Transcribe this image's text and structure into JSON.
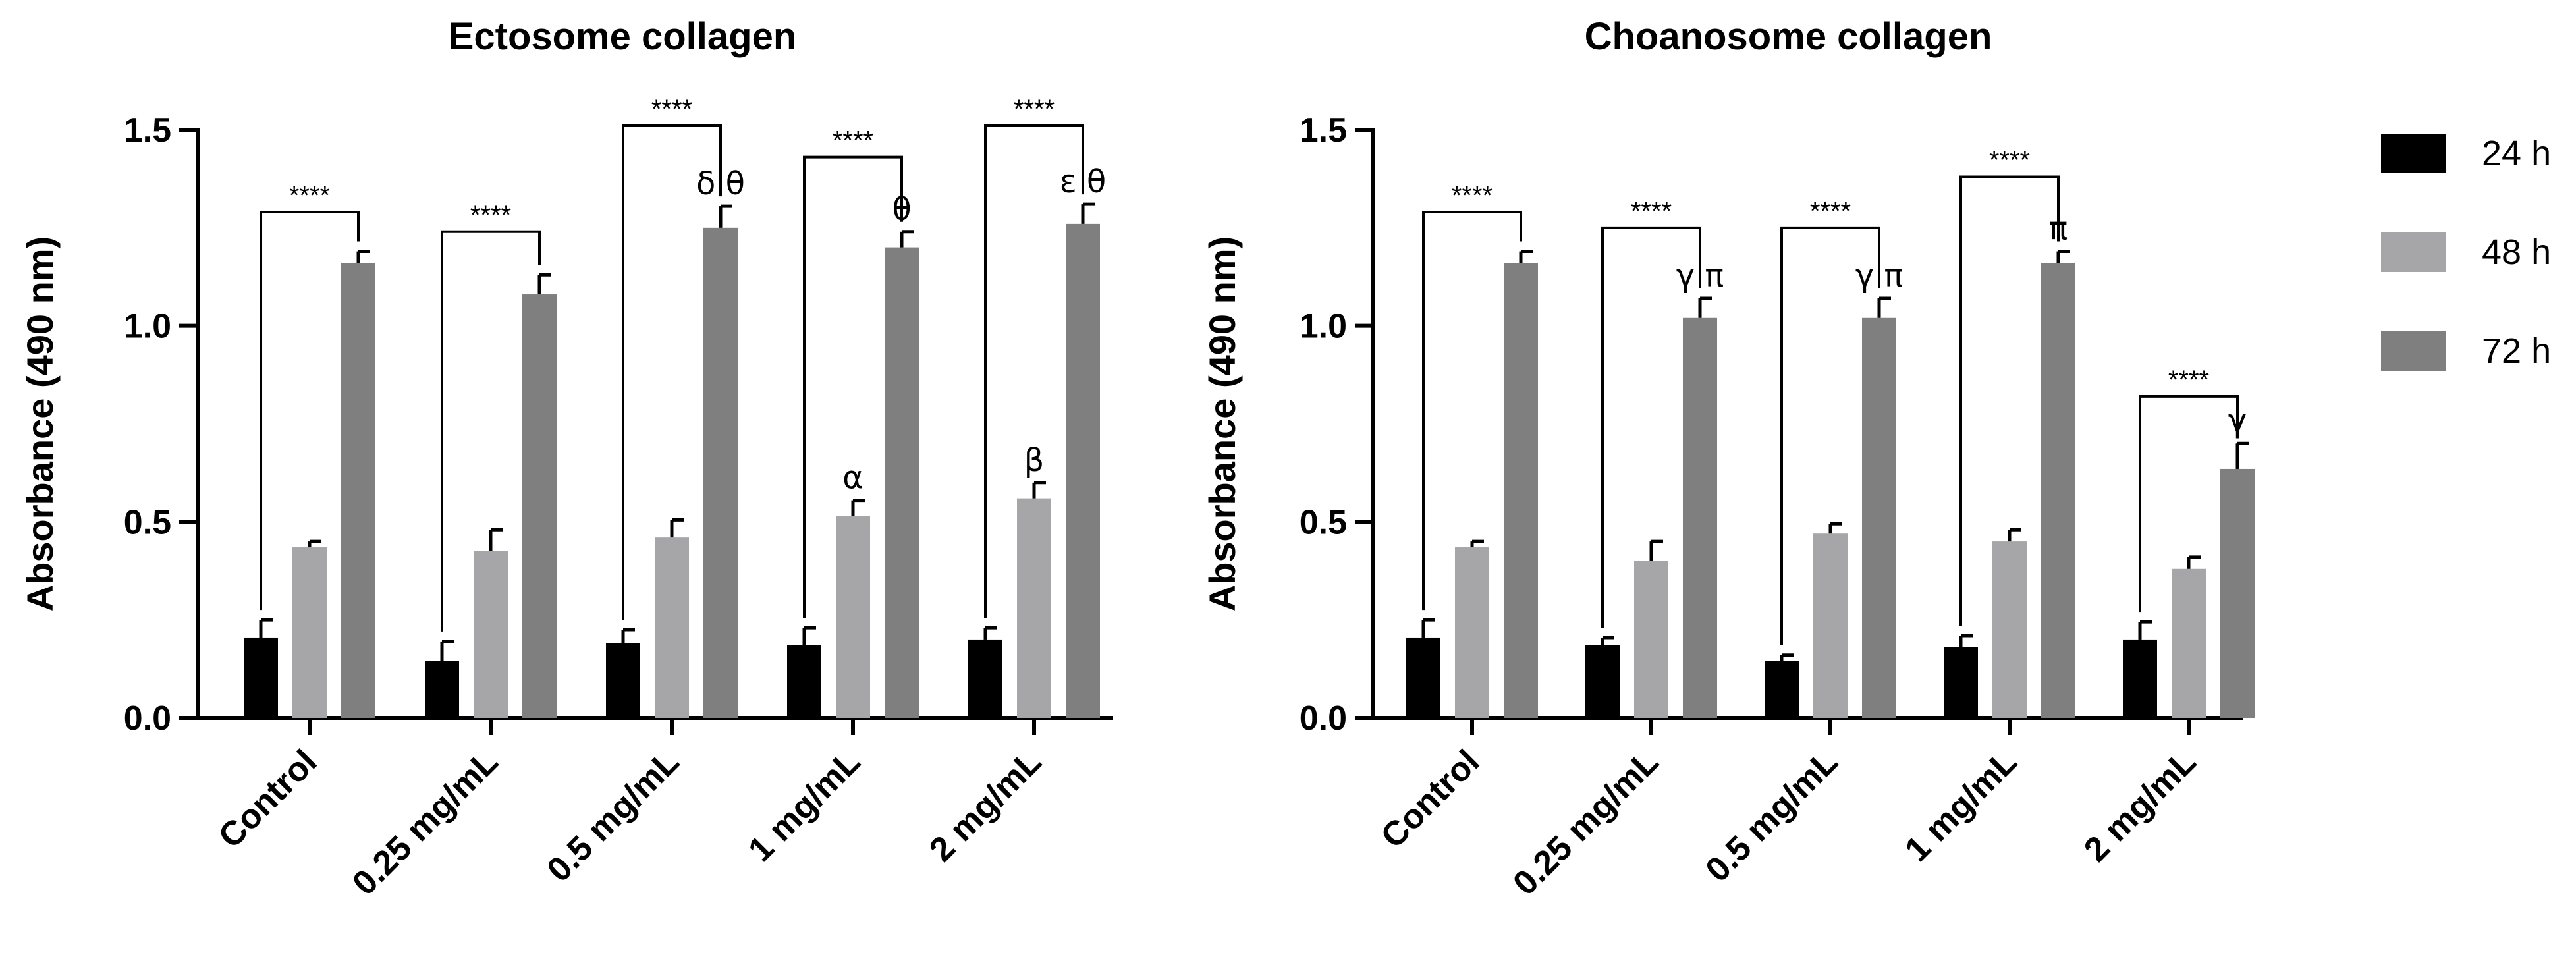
{
  "chart_data": [
    {
      "type": "bar",
      "title": "Ectosome collagen",
      "ylabel": "Absorbance (490 nm)",
      "xlabel": "",
      "ylim": [
        0,
        1.5
      ],
      "yticks": [
        "0.0",
        "0.5",
        "1.0",
        "1.5"
      ],
      "categories": [
        "Control",
        "0.25 mg/mL",
        "0.5 mg/mL",
        "1 mg/mL",
        "2 mg/mL"
      ],
      "series": [
        {
          "name": "24 h",
          "color": "#000000",
          "values": [
            0.205,
            0.145,
            0.19,
            0.185,
            0.2
          ],
          "errors": [
            0.045,
            0.05,
            0.035,
            0.045,
            0.03
          ]
        },
        {
          "name": "48 h",
          "color": "#a6a6a8",
          "values": [
            0.435,
            0.425,
            0.46,
            0.515,
            0.56
          ],
          "errors": [
            0.015,
            0.055,
            0.045,
            0.04,
            0.04
          ]
        },
        {
          "name": "72 h",
          "color": "#7f7f7f",
          "values": [
            1.16,
            1.08,
            1.25,
            1.2,
            1.26
          ],
          "errors": [
            0.03,
            0.05,
            0.055,
            0.04,
            0.05
          ]
        }
      ],
      "brackets": [
        {
          "category": 0,
          "y": 1.29,
          "label": "****"
        },
        {
          "category": 1,
          "y": 1.24,
          "label": "****"
        },
        {
          "category": 2,
          "y": 1.51,
          "label": "****"
        },
        {
          "category": 3,
          "y": 1.43,
          "label": "****"
        },
        {
          "category": 4,
          "y": 1.51,
          "label": "****"
        }
      ],
      "annotations": [
        {
          "category": 2,
          "series": 2,
          "text": "δ θ"
        },
        {
          "category": 3,
          "series": 2,
          "text": "θ"
        },
        {
          "category": 4,
          "series": 2,
          "text": "ε θ"
        },
        {
          "category": 3,
          "series": 1,
          "text": "α"
        },
        {
          "category": 4,
          "series": 1,
          "text": "β"
        }
      ]
    },
    {
      "type": "bar",
      "title": "Choanosome collagen",
      "ylabel": "Absorbance (490 nm)",
      "xlabel": "",
      "ylim": [
        0,
        1.5
      ],
      "yticks": [
        "0.0",
        "0.5",
        "1.0",
        "1.5"
      ],
      "categories": [
        "Control",
        "0.25 mg/mL",
        "0.5 mg/mL",
        "1 mg/mL",
        "2 mg/mL"
      ],
      "series": [
        {
          "name": "24 h",
          "color": "#000000",
          "values": [
            0.205,
            0.185,
            0.145,
            0.18,
            0.2
          ],
          "errors": [
            0.045,
            0.02,
            0.015,
            0.03,
            0.045
          ]
        },
        {
          "name": "48 h",
          "color": "#a6a6a8",
          "values": [
            0.435,
            0.4,
            0.47,
            0.45,
            0.38
          ],
          "errors": [
            0.015,
            0.05,
            0.025,
            0.03,
            0.03
          ]
        },
        {
          "name": "72 h",
          "color": "#7f7f7f",
          "values": [
            1.16,
            1.02,
            1.02,
            1.16,
            0.635
          ],
          "errors": [
            0.03,
            0.05,
            0.05,
            0.03,
            0.065
          ]
        }
      ],
      "brackets": [
        {
          "category": 0,
          "y": 1.29,
          "label": "****"
        },
        {
          "category": 1,
          "y": 1.25,
          "label": "****"
        },
        {
          "category": 2,
          "y": 1.25,
          "label": "****"
        },
        {
          "category": 3,
          "y": 1.38,
          "label": "****"
        },
        {
          "category": 4,
          "y": 0.82,
          "label": "****"
        }
      ],
      "annotations": [
        {
          "category": 1,
          "series": 2,
          "text": "γ π"
        },
        {
          "category": 2,
          "series": 2,
          "text": "γ π"
        },
        {
          "category": 3,
          "series": 2,
          "text": "π"
        },
        {
          "category": 4,
          "series": 2,
          "text": "γ"
        }
      ]
    }
  ],
  "legend": {
    "placement": "right",
    "items": [
      {
        "label": "24 h",
        "color": "#000000"
      },
      {
        "label": "48 h",
        "color": "#a6a6a8"
      },
      {
        "label": "72 h",
        "color": "#7f7f7f"
      }
    ]
  }
}
